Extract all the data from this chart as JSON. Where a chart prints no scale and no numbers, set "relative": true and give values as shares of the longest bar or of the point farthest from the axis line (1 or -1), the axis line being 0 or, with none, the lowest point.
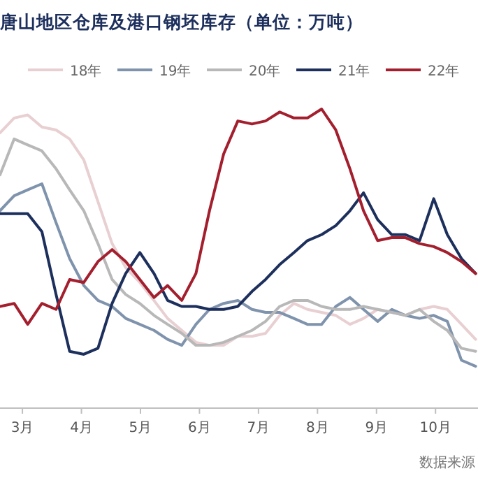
{
  "chart_data": {
    "type": "line",
    "title": "唐山地区仓库及港口钢坯库存（单位：万吨）",
    "relative": true,
    "legend": "top",
    "xlim": [
      2.62,
      10.72
    ],
    "xticks": [
      {
        "value": 3,
        "label": "3月"
      },
      {
        "value": 4,
        "label": "4月"
      },
      {
        "value": 5,
        "label": "5月"
      },
      {
        "value": 6,
        "label": "6月"
      },
      {
        "value": 7,
        "label": "7月"
      },
      {
        "value": 8,
        "label": "8月"
      },
      {
        "value": 9,
        "label": "9月"
      },
      {
        "value": 10,
        "label": "10月"
      }
    ],
    "x": [
      2.62,
      2.86,
      3.09,
      3.33,
      3.57,
      3.8,
      4.04,
      4.28,
      4.52,
      4.75,
      4.99,
      5.23,
      5.46,
      5.7,
      5.94,
      6.17,
      6.41,
      6.65,
      6.89,
      7.12,
      7.36,
      7.6,
      7.83,
      8.07,
      8.31,
      8.55,
      8.78,
      9.02,
      9.26,
      9.49,
      9.73,
      9.97,
      10.2,
      10.44,
      10.68
    ],
    "series": [
      {
        "name": "18年",
        "color": "#e8cfd2",
        "values": [
          0.92,
          0.97,
          0.98,
          0.94,
          0.93,
          0.9,
          0.83,
          0.69,
          0.55,
          0.47,
          0.42,
          0.36,
          0.3,
          0.26,
          0.22,
          0.21,
          0.21,
          0.24,
          0.24,
          0.25,
          0.31,
          0.35,
          0.33,
          0.32,
          0.31,
          0.28,
          0.3,
          0.33,
          0.32,
          0.31,
          0.33,
          0.34,
          0.33,
          0.28,
          0.23
        ]
      },
      {
        "name": "19年",
        "color": "#7f93ad",
        "values": [
          0.66,
          0.71,
          0.73,
          0.75,
          0.62,
          0.5,
          0.41,
          0.36,
          0.34,
          0.3,
          0.28,
          0.26,
          0.23,
          0.21,
          0.28,
          0.33,
          0.35,
          0.36,
          0.33,
          0.32,
          0.32,
          0.3,
          0.28,
          0.28,
          0.34,
          0.37,
          0.33,
          0.29,
          0.33,
          0.31,
          0.3,
          0.31,
          0.29,
          0.16,
          0.14
        ]
      },
      {
        "name": "20年",
        "color": "#b8b8b8",
        "values": [
          0.78,
          0.9,
          0.88,
          0.86,
          0.8,
          0.73,
          0.66,
          0.55,
          0.43,
          0.38,
          0.35,
          0.31,
          0.28,
          0.25,
          0.21,
          0.21,
          0.22,
          0.24,
          0.26,
          0.29,
          0.34,
          0.36,
          0.36,
          0.34,
          0.33,
          0.33,
          0.34,
          0.33,
          0.32,
          0.31,
          0.33,
          0.29,
          0.26,
          0.2,
          0.19
        ]
      },
      {
        "name": "21年",
        "color": "#1d2f5c",
        "values": [
          0.65,
          0.65,
          0.65,
          0.59,
          0.38,
          0.19,
          0.18,
          0.2,
          0.35,
          0.45,
          0.52,
          0.45,
          0.36,
          0.34,
          0.34,
          0.33,
          0.33,
          0.34,
          0.39,
          0.43,
          0.48,
          0.52,
          0.56,
          0.58,
          0.61,
          0.66,
          0.72,
          0.63,
          0.58,
          0.58,
          0.56,
          0.7,
          0.58,
          0.5,
          0.45
        ]
      },
      {
        "name": "22年",
        "color": "#a31f2e",
        "values": [
          0.34,
          0.35,
          0.28,
          0.35,
          0.33,
          0.43,
          0.42,
          0.49,
          0.53,
          0.49,
          0.43,
          0.37,
          0.41,
          0.36,
          0.45,
          0.66,
          0.85,
          0.96,
          0.95,
          0.96,
          0.99,
          0.97,
          0.97,
          1.0,
          0.93,
          0.8,
          0.66,
          0.56,
          0.57,
          0.57,
          0.55,
          0.54,
          0.52,
          0.49,
          0.45
        ]
      }
    ],
    "annotations": [
      "数据来源"
    ]
  }
}
